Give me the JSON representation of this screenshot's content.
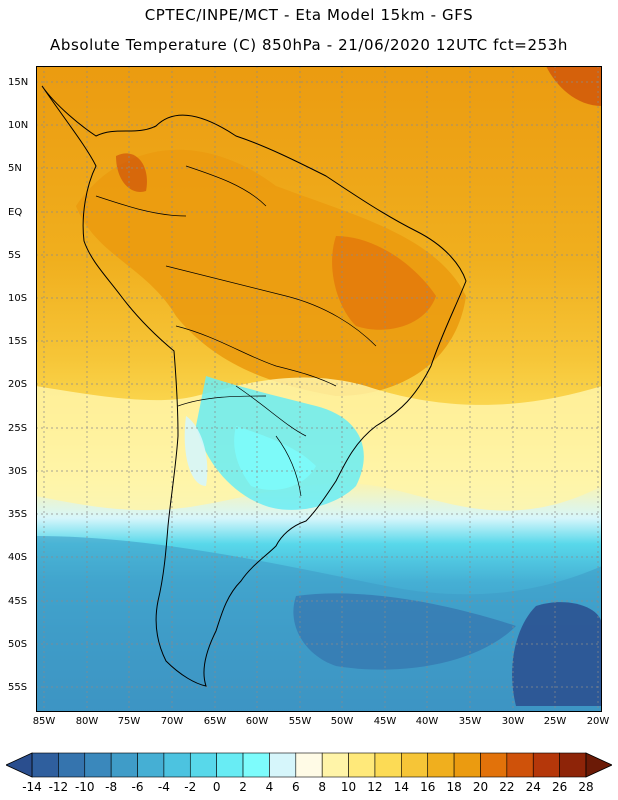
{
  "header": {
    "line1": "CPTEC/INPE/MCT -  Eta Model 15km - GFS",
    "line2": "Absolute Temperature (C) 850hPa - 21/06/2020 12UTC fct=253h"
  },
  "axes": {
    "lat_labels": [
      "15N",
      "10N",
      "5N",
      "EQ",
      "5S",
      "10S",
      "15S",
      "20S",
      "25S",
      "30S",
      "35S",
      "40S",
      "45S",
      "50S",
      "55S"
    ],
    "lon_labels": [
      "85W",
      "80W",
      "75W",
      "70W",
      "65W",
      "60W",
      "55W",
      "50W",
      "45W",
      "40W",
      "35W",
      "30W",
      "25W",
      "20W"
    ]
  },
  "colorbar": {
    "labels": [
      "-14",
      "-12",
      "-10",
      "-8",
      "-6",
      "-4",
      "-2",
      "0",
      "2",
      "4",
      "6",
      "8",
      "10",
      "12",
      "14",
      "16",
      "18",
      "20",
      "22",
      "24",
      "26",
      "28"
    ],
    "colors": [
      "#2a4e8e",
      "#2f5f9e",
      "#3574ae",
      "#3a88bc",
      "#3f9cc8",
      "#45afd4",
      "#4cc3e0",
      "#58d8ea",
      "#68ecf4",
      "#7dfcfc",
      "#d6f6fb",
      "#fffbe6",
      "#fff4a8",
      "#ffe97a",
      "#fcdb55",
      "#f6c537",
      "#f0af1e",
      "#eb9b10",
      "#e2720a",
      "#cf520a",
      "#b5370a",
      "#8e2408",
      "#6b1a06"
    ]
  },
  "map": {
    "region": "South America",
    "variable": "Absolute Temperature (C) 850hPa"
  }
}
